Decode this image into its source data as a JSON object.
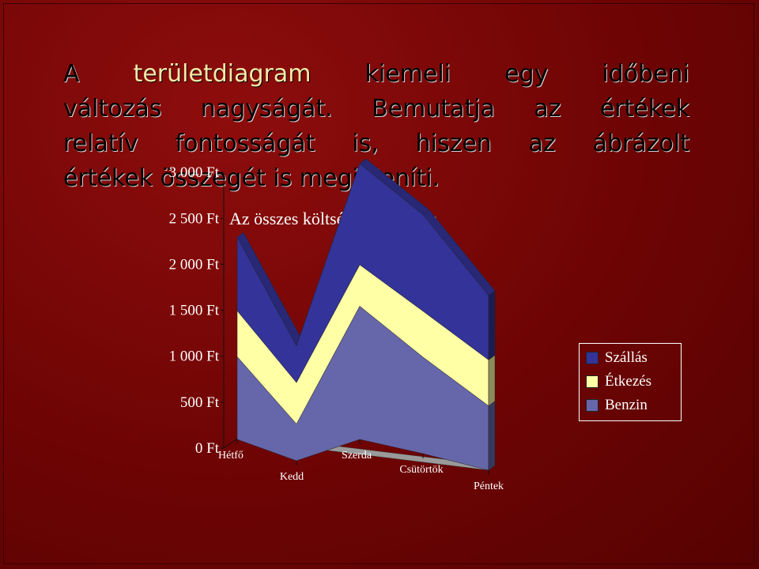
{
  "slide": {
    "highlight_word": "területdiagram",
    "lines": [
      [
        "A ",
        "kiemeli egy időbeni"
      ],
      [
        "változás nagyságát. Bemutatja az értékek"
      ],
      [
        "relatív fontosságát is, hiszen az ábrázolt"
      ],
      [
        "értékek összegét is megjeleníti."
      ]
    ]
  },
  "chart_data": {
    "type": "area",
    "stacked": true,
    "three_d": true,
    "title": "Az összes költség megoszlása",
    "categories": [
      "Hétfő",
      "Kedd",
      "Szerda",
      "Csütörtök",
      "Péntek"
    ],
    "series": [
      {
        "name": "Benzin",
        "values": [
          900,
          400,
          1450,
          1050,
          700
        ],
        "color": "#6666aa"
      },
      {
        "name": "Étkezés",
        "values": [
          500,
          450,
          450,
          500,
          500
        ],
        "color": "#ffffa6"
      },
      {
        "name": "Szállás",
        "values": [
          800,
          400,
          1100,
          1050,
          700
        ],
        "color": "#333399"
      }
    ],
    "yticks": [
      "0 Ft",
      "500 Ft",
      "1 000 Ft",
      "1 500 Ft",
      "2 000 Ft",
      "2 500 Ft",
      "3 000 Ft"
    ],
    "ylim": [
      0,
      3000
    ],
    "grid": false,
    "legend_position": "right"
  }
}
